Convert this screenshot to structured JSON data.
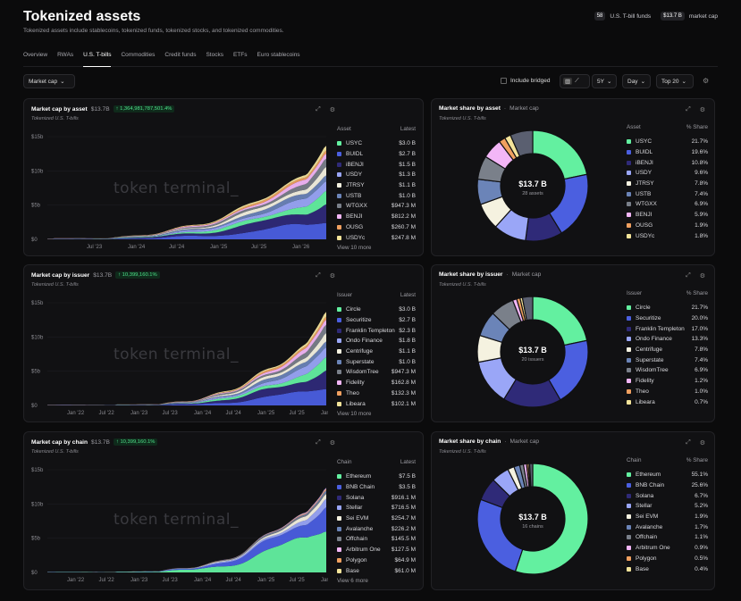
{
  "header": {
    "title": "Tokenized assets",
    "subtitle": "Tokenized assets include stablecoins, tokenized funds, tokenized stocks, and tokenized commodities.",
    "funds_count": "58",
    "funds_label": "U.S. T-bill funds",
    "mcap_value": "$13.7 B",
    "mcap_label": "market cap"
  },
  "tabs": [
    "Overview",
    "RWAs",
    "U.S. T-bills",
    "Commodities",
    "Credit funds",
    "Stocks",
    "ETFs",
    "Euro stablecoins"
  ],
  "toolbar": {
    "metric": "Market cap",
    "include_bridged": "Include bridged",
    "range": "5Y",
    "granularity": "Day",
    "top": "Top 20"
  },
  "colors": [
    "#63f0a0",
    "#4b5fe0",
    "#2f2a78",
    "#9aa6f7",
    "#f5f2e0",
    "#6b84b8",
    "#7a808a",
    "#f3b6f7",
    "#f0a060",
    "#f4e49a",
    "#e04a4a",
    "#6ac8f0"
  ],
  "watermark": "token terminal_",
  "cards": [
    {
      "title": "Market cap by asset",
      "value": "$13.7B",
      "change": "↑ 1,364,981,787,501.4%",
      "sub": "Tokenized U.S. T-bills",
      "col": "Asset",
      "col2": "Latest",
      "more": "View 10 more",
      "yticks": [
        "$15b",
        "$10b",
        "$5b",
        "$0"
      ],
      "xticks": [
        "Jul '23",
        "Jan '24",
        "Jul '24",
        "Jan '25",
        "Jul '25",
        "Jan '26"
      ],
      "rows": [
        [
          "USYC",
          "$3.0 B"
        ],
        [
          "BUIDL",
          "$2.7 B"
        ],
        [
          "iBENJI",
          "$1.5 B"
        ],
        [
          "USDY",
          "$1.3 B"
        ],
        [
          "JTRSY",
          "$1.1 B"
        ],
        [
          "USTB",
          "$1.0 B"
        ],
        [
          "WTGXX",
          "$947.3 M"
        ],
        [
          "BENJI",
          "$812.2 M"
        ],
        [
          "OUSG",
          "$260.7 M"
        ],
        [
          "USDYc",
          "$247.8 M"
        ]
      ]
    },
    {
      "title": "Market cap by issuer",
      "value": "$13.7B",
      "change": "↑ 10,399,160.1%",
      "sub": "Tokenized U.S. T-bills",
      "col": "Issuer",
      "col2": "Latest",
      "more": "View 10 more",
      "yticks": [
        "$15b",
        "$10b",
        "$5b",
        "$0"
      ],
      "xticks": [
        "Jan '22",
        "Jul '22",
        "Jan '23",
        "Jul '23",
        "Jan '24",
        "Jul '24",
        "Jan '25",
        "Jul '25",
        "Jan '26"
      ],
      "rows": [
        [
          "Circle",
          "$3.0 B"
        ],
        [
          "Securitize",
          "$2.7 B"
        ],
        [
          "Franklin Templeton",
          "$2.3 B"
        ],
        [
          "Ondo Finance",
          "$1.8 B"
        ],
        [
          "Centrifuge",
          "$1.1 B"
        ],
        [
          "Superstate",
          "$1.0 B"
        ],
        [
          "WisdomTree",
          "$947.3 M"
        ],
        [
          "Fidelity",
          "$162.8 M"
        ],
        [
          "Theo",
          "$132.3 M"
        ],
        [
          "Libeara",
          "$102.1 M"
        ]
      ]
    },
    {
      "title": "Market cap by chain",
      "value": "$13.7B",
      "change": "↑ 10,399,160.1%",
      "sub": "Tokenized U.S. T-bills",
      "col": "Chain",
      "col2": "Latest",
      "more": "View 6 more",
      "yticks": [
        "$15b",
        "$10b",
        "$5b",
        "$0"
      ],
      "xticks": [
        "Jan '22",
        "Jul '22",
        "Jan '23",
        "Jul '23",
        "Jan '24",
        "Jul '24",
        "Jan '25",
        "Jul '25",
        "Jan '26"
      ],
      "rows": [
        [
          "Ethereum",
          "$7.5 B"
        ],
        [
          "BNB Chain",
          "$3.5 B"
        ],
        [
          "Solana",
          "$916.1 M"
        ],
        [
          "Stellar",
          "$716.5 M"
        ],
        [
          "Sei EVM",
          "$254.7 M"
        ],
        [
          "Avalanche",
          "$226.2 M"
        ],
        [
          "Offchain",
          "$145.5 M"
        ],
        [
          "Arbitrum One",
          "$127.5 M"
        ],
        [
          "Polygon",
          "$64.9 M"
        ],
        [
          "Base",
          "$61.0 M"
        ]
      ]
    }
  ],
  "shares": [
    {
      "title": "Market share by asset",
      "metric": "Market cap",
      "sub": "Tokenized U.S. T-bills",
      "total": "$13.7 B",
      "count": "28 assets",
      "col": "Asset",
      "col2": "% Share",
      "rows": [
        [
          "USYC",
          "21.7%"
        ],
        [
          "BUIDL",
          "19.6%"
        ],
        [
          "iBENJI",
          "10.8%"
        ],
        [
          "USDY",
          "9.6%"
        ],
        [
          "JTRSY",
          "7.8%"
        ],
        [
          "USTB",
          "7.4%"
        ],
        [
          "WTGXX",
          "6.9%"
        ],
        [
          "BENJI",
          "5.9%"
        ],
        [
          "OUSG",
          "1.9%"
        ],
        [
          "USDYc",
          "1.8%"
        ]
      ],
      "chart_data": {
        "type": "pie",
        "categories": [
          "USYC",
          "BUIDL",
          "iBENJI",
          "USDY",
          "JTRSY",
          "USTB",
          "WTGXX",
          "BENJI",
          "OUSG",
          "USDYc",
          "Other"
        ],
        "values": [
          21.7,
          19.6,
          10.8,
          9.6,
          7.8,
          7.4,
          6.9,
          5.9,
          1.9,
          1.8,
          6.6
        ]
      }
    },
    {
      "title": "Market share by issuer",
      "metric": "Market cap",
      "sub": "Tokenized U.S. T-bills",
      "total": "$13.7 B",
      "count": "20 issuers",
      "col": "Issuer",
      "col2": "% Share",
      "rows": [
        [
          "Circle",
          "21.7%"
        ],
        [
          "Securitize",
          "20.0%"
        ],
        [
          "Franklin Templeton",
          "17.0%"
        ],
        [
          "Ondo Finance",
          "13.3%"
        ],
        [
          "Centrifuge",
          "7.8%"
        ],
        [
          "Superstate",
          "7.4%"
        ],
        [
          "WisdomTree",
          "6.9%"
        ],
        [
          "Fidelity",
          "1.2%"
        ],
        [
          "Theo",
          "1.0%"
        ],
        [
          "Libeara",
          "0.7%"
        ]
      ],
      "chart_data": {
        "type": "pie",
        "categories": [
          "Circle",
          "Securitize",
          "Franklin Templeton",
          "Ondo Finance",
          "Centrifuge",
          "Superstate",
          "WisdomTree",
          "Fidelity",
          "Theo",
          "Libeara",
          "Other"
        ],
        "values": [
          21.7,
          20.0,
          17.0,
          13.3,
          7.8,
          7.4,
          6.9,
          1.2,
          1.0,
          0.7,
          3.0
        ]
      }
    },
    {
      "title": "Market share by chain",
      "metric": "Market cap",
      "sub": "Tokenized U.S. T-bills",
      "total": "$13.7 B",
      "count": "16 chains",
      "col": "Chain",
      "col2": "% Share",
      "rows": [
        [
          "Ethereum",
          "55.1%"
        ],
        [
          "BNB Chain",
          "25.6%"
        ],
        [
          "Solana",
          "6.7%"
        ],
        [
          "Stellar",
          "5.2%"
        ],
        [
          "Sei EVM",
          "1.9%"
        ],
        [
          "Avalanche",
          "1.7%"
        ],
        [
          "Offchain",
          "1.1%"
        ],
        [
          "Arbitrum One",
          "0.9%"
        ],
        [
          "Polygon",
          "0.5%"
        ],
        [
          "Base",
          "0.4%"
        ]
      ],
      "chart_data": {
        "type": "pie",
        "categories": [
          "Ethereum",
          "BNB Chain",
          "Solana",
          "Stellar",
          "Sei EVM",
          "Avalanche",
          "Offchain",
          "Arbitrum One",
          "Polygon",
          "Base",
          "Other"
        ],
        "values": [
          55.1,
          25.6,
          6.7,
          5.2,
          1.9,
          1.7,
          1.1,
          0.9,
          0.5,
          0.4,
          0.9
        ]
      }
    }
  ]
}
